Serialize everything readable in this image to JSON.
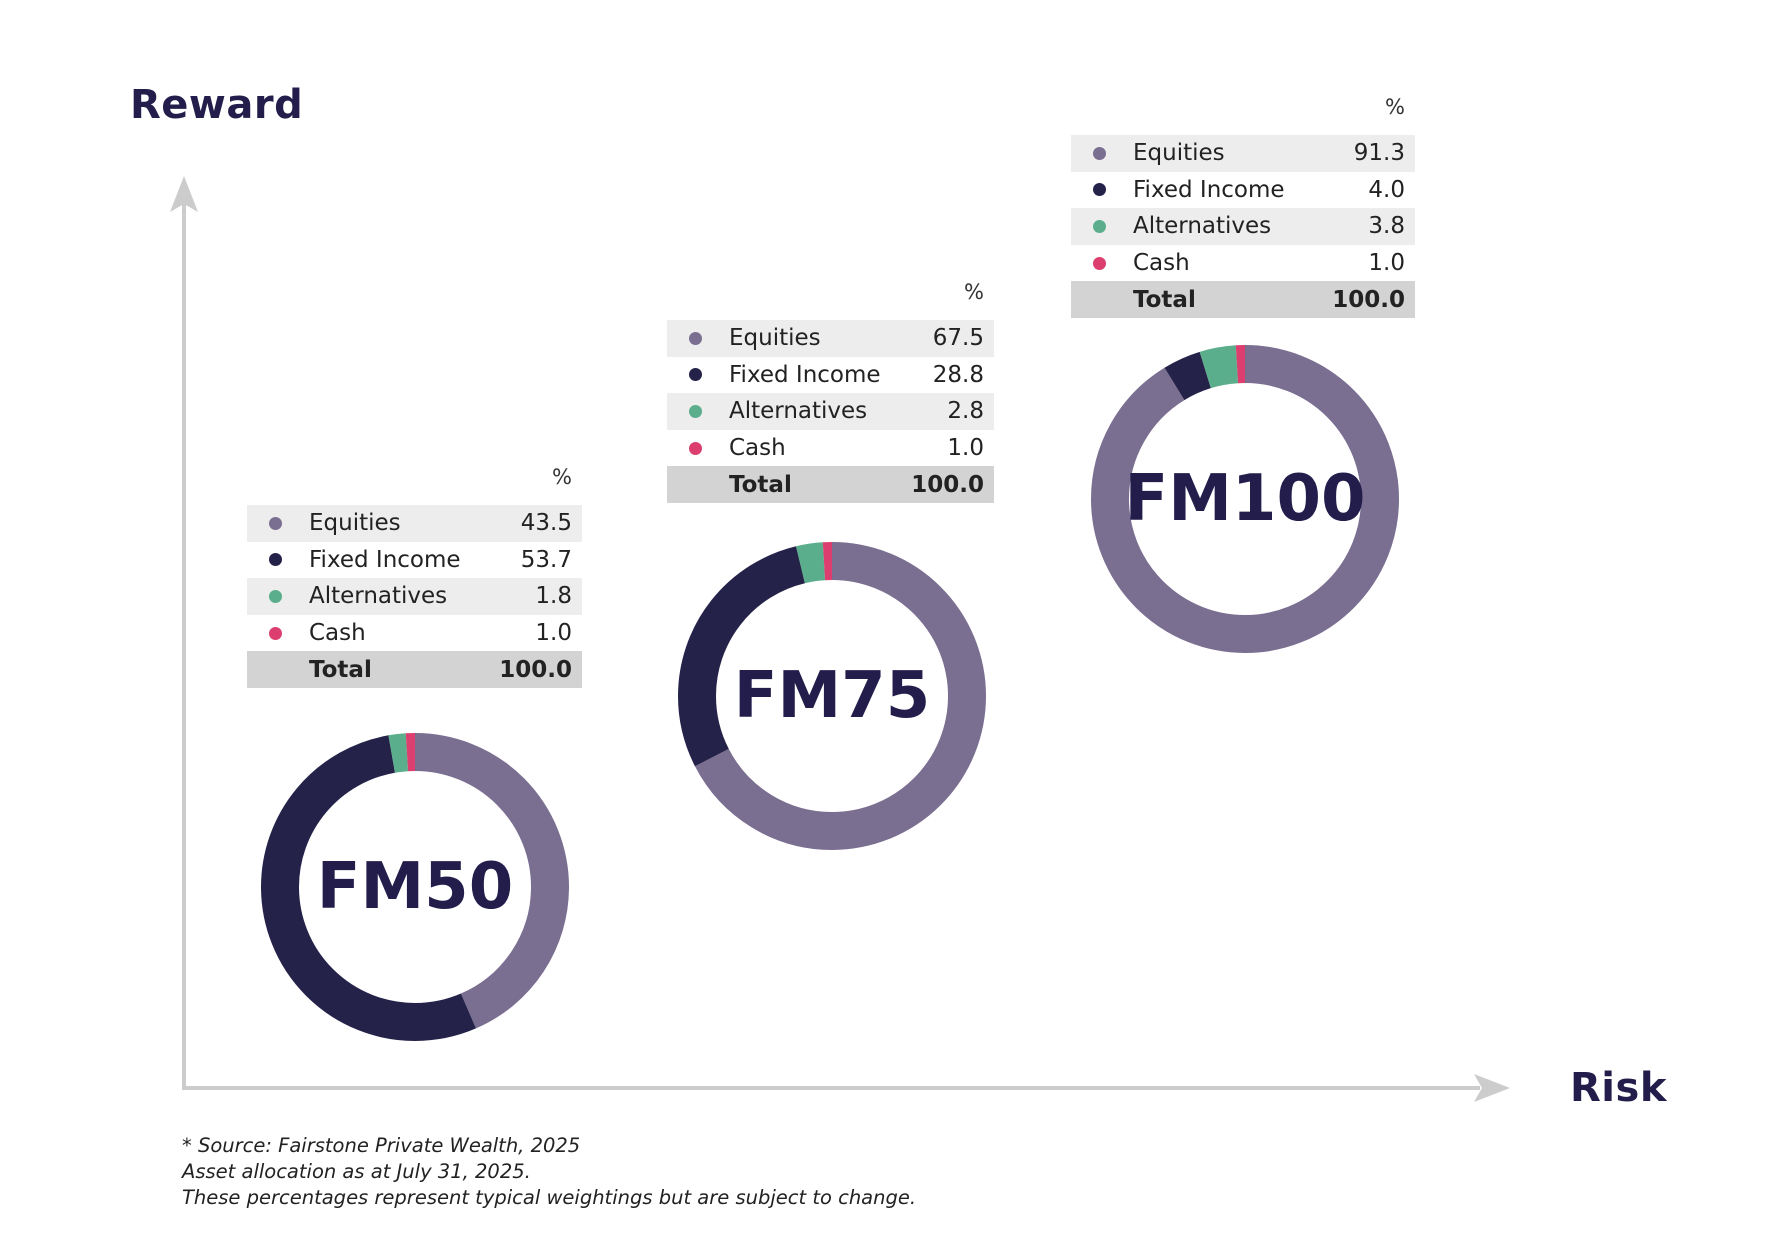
{
  "axes": {
    "y_label": "Reward",
    "x_label": "Risk",
    "axis_color": "#cccccc"
  },
  "colors": {
    "Equities": "#7a6e91",
    "Fixed Income": "#25224a",
    "Alternatives": "#5aae8c",
    "Cash": "#dc3f6f",
    "label": "#221d4b"
  },
  "portfolios": [
    {
      "name": "FM50",
      "unit": "%",
      "rows": [
        {
          "label": "Equities",
          "value": "43.5"
        },
        {
          "label": "Fixed Income",
          "value": "53.7"
        },
        {
          "label": "Alternatives",
          "value": "1.8"
        },
        {
          "label": "Cash",
          "value": "1.0"
        }
      ],
      "total_label": "Total",
      "total_value": "100.0"
    },
    {
      "name": "FM75",
      "unit": "%",
      "rows": [
        {
          "label": "Equities",
          "value": "67.5"
        },
        {
          "label": "Fixed Income",
          "value": "28.8"
        },
        {
          "label": "Alternatives",
          "value": "2.8"
        },
        {
          "label": "Cash",
          "value": "1.0"
        }
      ],
      "total_label": "Total",
      "total_value": "100.0"
    },
    {
      "name": "FM100",
      "unit": "%",
      "rows": [
        {
          "label": "Equities",
          "value": "91.3"
        },
        {
          "label": "Fixed Income",
          "value": "4.0"
        },
        {
          "label": "Alternatives",
          "value": "3.8"
        },
        {
          "label": "Cash",
          "value": "1.0"
        }
      ],
      "total_label": "Total",
      "total_value": "100.0"
    }
  ],
  "footnote": {
    "line1": "* Source: Fairstone Private Wealth, 2025",
    "line2": "Asset allocation as at July 31, 2025.",
    "line3": "These percentages represent typical weightings but are subject to change."
  },
  "chart_data": [
    {
      "type": "pie",
      "title": "FM50",
      "categories": [
        "Equities",
        "Fixed Income",
        "Alternatives",
        "Cash"
      ],
      "values": [
        43.5,
        53.7,
        1.8,
        1.0
      ],
      "total": 100.0,
      "xlabel": "Risk",
      "ylabel": "Reward"
    },
    {
      "type": "pie",
      "title": "FM75",
      "categories": [
        "Equities",
        "Fixed Income",
        "Alternatives",
        "Cash"
      ],
      "values": [
        67.5,
        28.8,
        2.8,
        1.0
      ],
      "total": 100.0,
      "xlabel": "Risk",
      "ylabel": "Reward"
    },
    {
      "type": "pie",
      "title": "FM100",
      "categories": [
        "Equities",
        "Fixed Income",
        "Alternatives",
        "Cash"
      ],
      "values": [
        91.3,
        4.0,
        3.8,
        1.0
      ],
      "total": 100.0,
      "xlabel": "Risk",
      "ylabel": "Reward"
    }
  ]
}
